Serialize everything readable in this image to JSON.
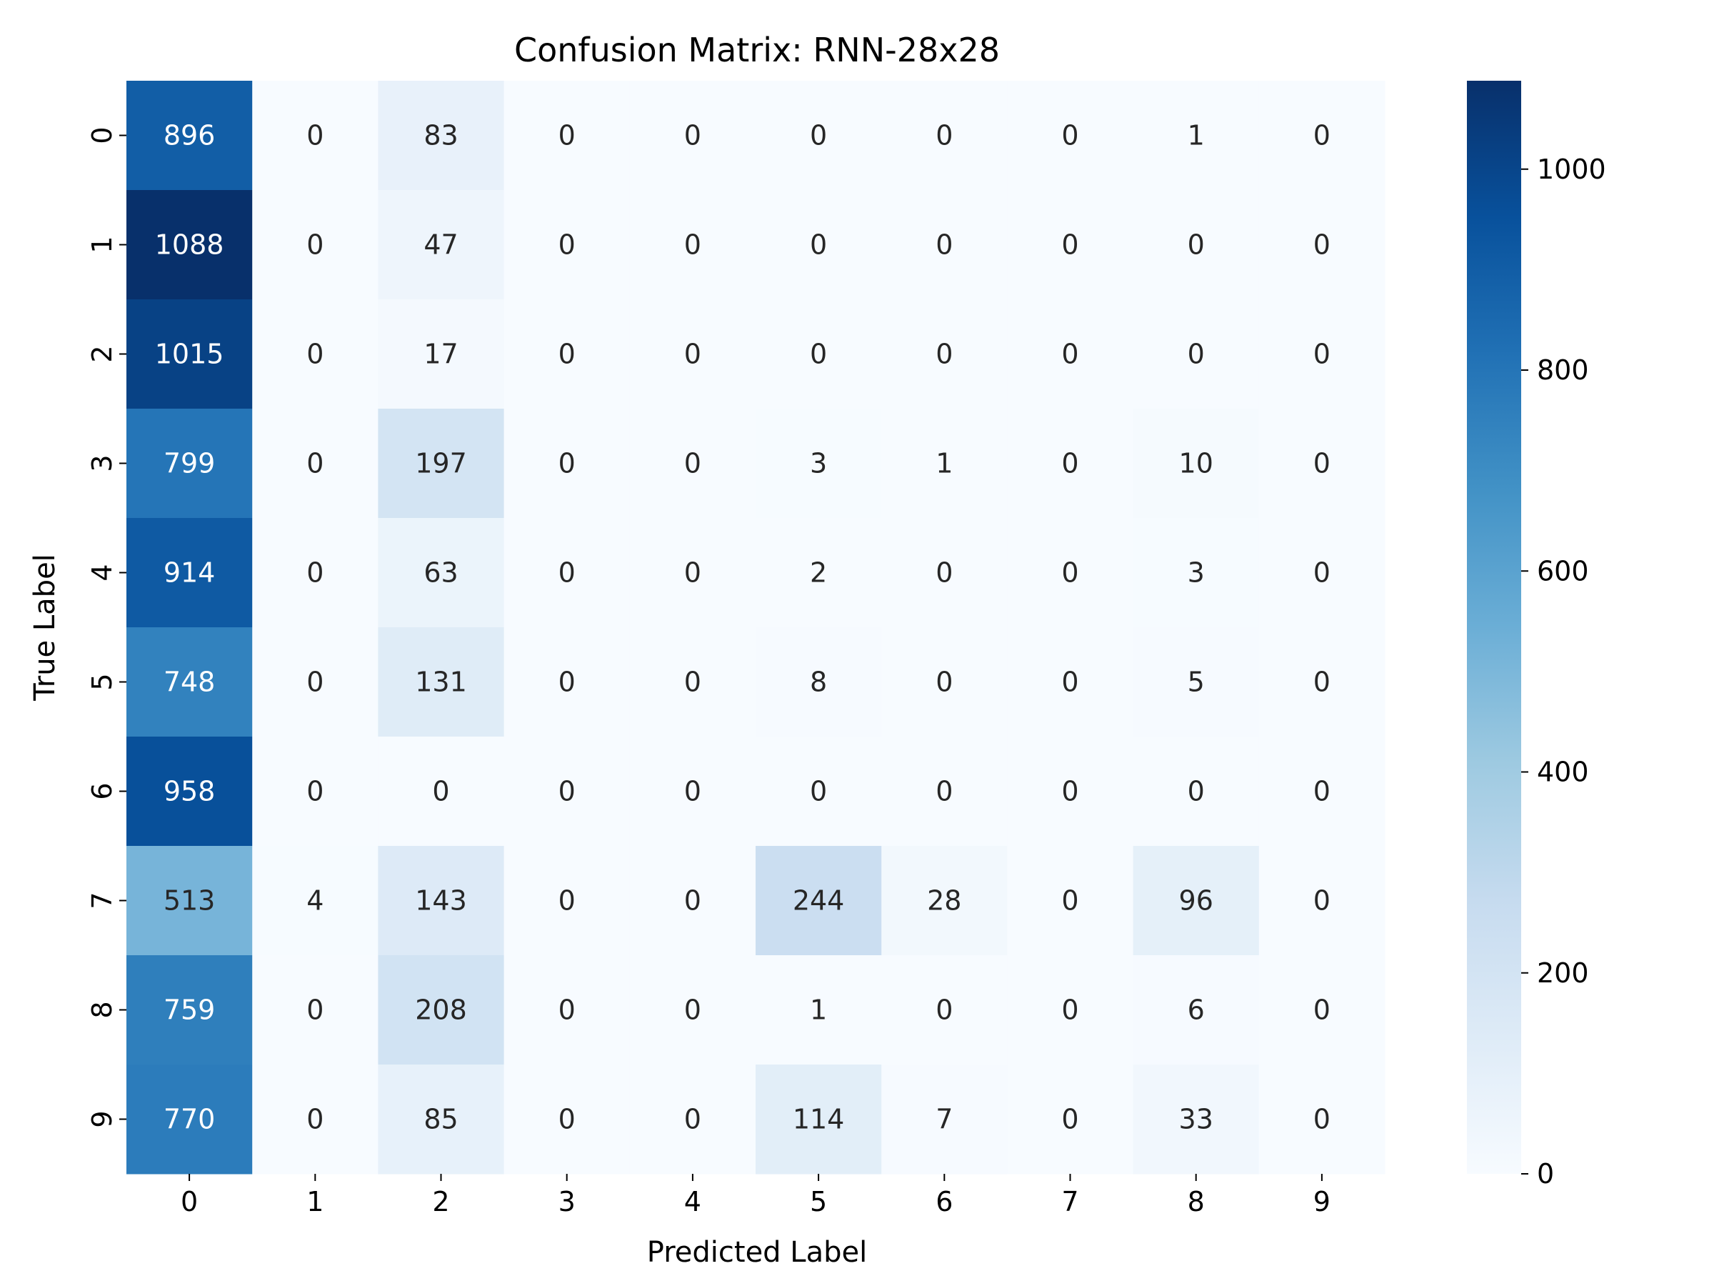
{
  "chart_data": {
    "type": "heatmap",
    "title": "Confusion Matrix: RNN-28x28",
    "xlabel": "Predicted Label",
    "ylabel": "True Label",
    "x_categories": [
      "0",
      "1",
      "2",
      "3",
      "4",
      "5",
      "6",
      "7",
      "8",
      "9"
    ],
    "y_categories": [
      "0",
      "1",
      "2",
      "3",
      "4",
      "5",
      "6",
      "7",
      "8",
      "9"
    ],
    "values": [
      [
        896,
        0,
        83,
        0,
        0,
        0,
        0,
        0,
        1,
        0
      ],
      [
        1088,
        0,
        47,
        0,
        0,
        0,
        0,
        0,
        0,
        0
      ],
      [
        1015,
        0,
        17,
        0,
        0,
        0,
        0,
        0,
        0,
        0
      ],
      [
        799,
        0,
        197,
        0,
        0,
        3,
        1,
        0,
        10,
        0
      ],
      [
        914,
        0,
        63,
        0,
        0,
        2,
        0,
        0,
        3,
        0
      ],
      [
        748,
        0,
        131,
        0,
        0,
        8,
        0,
        0,
        5,
        0
      ],
      [
        958,
        0,
        0,
        0,
        0,
        0,
        0,
        0,
        0,
        0
      ],
      [
        513,
        4,
        143,
        0,
        0,
        244,
        28,
        0,
        96,
        0
      ],
      [
        759,
        0,
        208,
        0,
        0,
        1,
        0,
        0,
        6,
        0
      ],
      [
        770,
        0,
        85,
        0,
        0,
        114,
        7,
        0,
        33,
        0
      ]
    ],
    "colormap": "Blues",
    "colorbar": {
      "vmin": 0,
      "vmax": 1088,
      "ticks": [
        0,
        200,
        400,
        600,
        800,
        1000
      ]
    },
    "grid": false
  }
}
